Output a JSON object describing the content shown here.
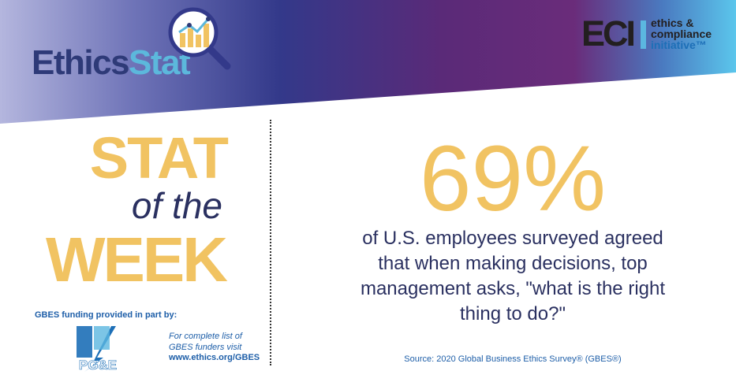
{
  "logo": {
    "ethics": "Ethics",
    "stat": "Stat"
  },
  "eci": {
    "mark": "ECI",
    "line1": "ethics &",
    "line2": "compliance",
    "line3": "initiative™"
  },
  "heading": {
    "stat": "STAT",
    "of_the": "of the",
    "week": "WEEK"
  },
  "funding": {
    "label": "GBES funding provided in part by:",
    "sponsor_logo_text": "PG&E",
    "note_line1": "For complete list of",
    "note_line2": "GBES funders visit",
    "url": "www.ethics.org/GBES"
  },
  "main": {
    "percent": "69%",
    "statement_line1": "of U.S. employees surveyed agreed",
    "statement_line2": "that when making decisions, top",
    "statement_line3": "management asks, \"what is the right",
    "statement_line4": "thing to do?\"",
    "source": "Source: 2020 Global Business Ethics Survey® (GBES®)"
  },
  "colors": {
    "gold": "#f1c362",
    "navy": "#2a3060",
    "blue": "#1d5ea8",
    "banner_left": "#8f95c9",
    "banner_mid": "#3a3f8c",
    "banner_purple": "#6e2a78",
    "banner_right": "#5bc0e8"
  }
}
